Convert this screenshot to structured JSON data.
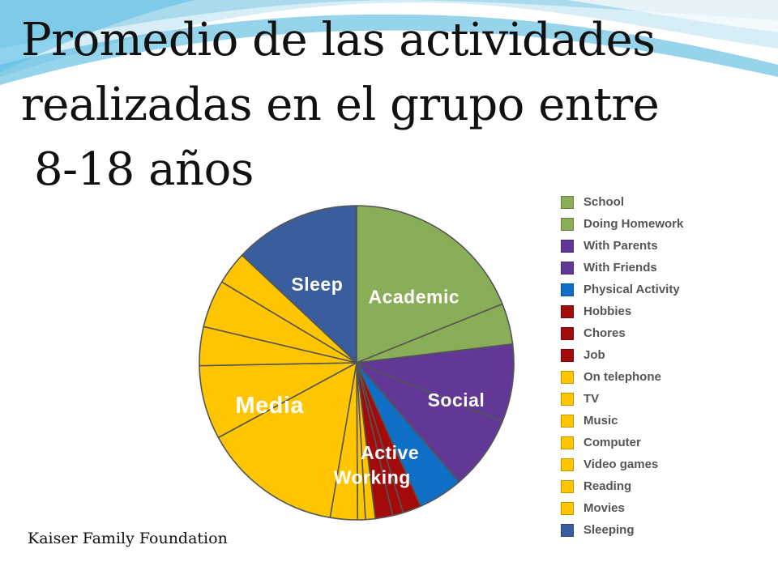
{
  "title": {
    "line1": "Promedio de las actividades",
    "line2": "realizadas en el grupo entre",
    "line3": "8-18  años"
  },
  "source": "Kaiser Family Foundation",
  "colors": {
    "academic": "#8aad57",
    "social": "#613895",
    "active": "#0f6fc6",
    "working": "#a30b0b",
    "media": "#ffc600",
    "sleep": "#3a5e9d",
    "outline": "#555555"
  },
  "chart_data": {
    "type": "pie",
    "start_angle_deg": 0,
    "direction": "clockwise",
    "slices": [
      {
        "name": "School",
        "value": 18.9,
        "group": "academic"
      },
      {
        "name": "Doing Homework",
        "value": 4.2,
        "group": "academic"
      },
      {
        "name": "With Parents",
        "value": 8.0,
        "group": "social"
      },
      {
        "name": "With Friends",
        "value": 7.6,
        "group": "social"
      },
      {
        "name": "Physical Activity",
        "value": 4.6,
        "group": "active"
      },
      {
        "name": "Hobbies",
        "value": 1.9,
        "group": "working"
      },
      {
        "name": "Chores",
        "value": 1.1,
        "group": "working"
      },
      {
        "name": "Job",
        "value": 1.8,
        "group": "working"
      },
      {
        "name": "On telephone",
        "value": 1.0,
        "group": "media"
      },
      {
        "name": "TV",
        "value": 0.8,
        "group": "media"
      },
      {
        "name": "Music",
        "value": 2.8,
        "group": "media"
      },
      {
        "name": "Computer",
        "value": 14.4,
        "group": "media"
      },
      {
        "name": "Video games",
        "value": 7.6,
        "group": "media"
      },
      {
        "name": "Reading",
        "value": 4.0,
        "group": "media"
      },
      {
        "name": "Movies",
        "value": 4.9,
        "group": "media"
      },
      {
        "name": "Sleeping",
        "value": 3.4,
        "group": "media"
      },
      {
        "name": "Sleeping",
        "value": 13.0,
        "group": "sleep"
      }
    ],
    "legend": [
      {
        "label": "School",
        "group": "academic"
      },
      {
        "label": "Doing Homework",
        "group": "academic"
      },
      {
        "label": "With Parents",
        "group": "social"
      },
      {
        "label": "With Friends",
        "group": "social"
      },
      {
        "label": "Physical Activity",
        "group": "active"
      },
      {
        "label": "Hobbies",
        "group": "working"
      },
      {
        "label": "Chores",
        "group": "working"
      },
      {
        "label": "Job",
        "group": "working"
      },
      {
        "label": "On telephone",
        "group": "media"
      },
      {
        "label": "TV",
        "group": "media"
      },
      {
        "label": "Music",
        "group": "media"
      },
      {
        "label": "Computer",
        "group": "media"
      },
      {
        "label": "Video games",
        "group": "media"
      },
      {
        "label": "Reading",
        "group": "media"
      },
      {
        "label": "Movies",
        "group": "media"
      },
      {
        "label": "Sleeping",
        "group": "sleep"
      }
    ],
    "group_labels": [
      {
        "text": "Sleep",
        "group": "sleep"
      },
      {
        "text": "Academic",
        "group": "academic"
      },
      {
        "text": "Social",
        "group": "social"
      },
      {
        "text": "Media",
        "group": "media"
      },
      {
        "text": "Active",
        "group": "active"
      },
      {
        "text": "Working",
        "group": "working"
      }
    ],
    "legend_placement": "right"
  }
}
